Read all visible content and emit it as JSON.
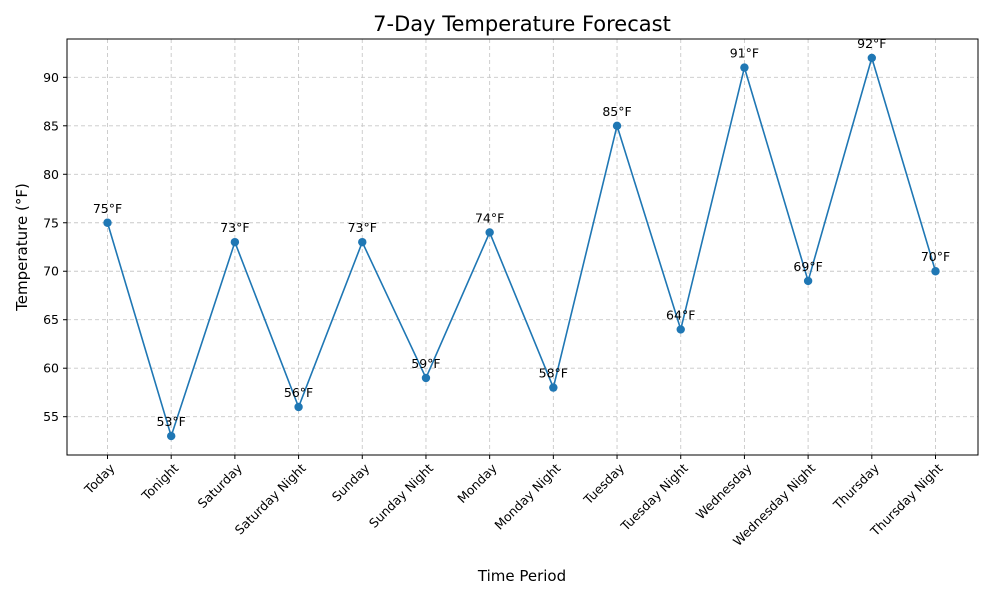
{
  "chart_data": {
    "type": "line",
    "title": "7-Day Temperature Forecast",
    "xlabel": "Time Period",
    "ylabel": "Temperature (°F)",
    "categories": [
      "Today",
      "Tonight",
      "Saturday",
      "Saturday Night",
      "Sunday",
      "Sunday Night",
      "Monday",
      "Monday Night",
      "Tuesday",
      "Tuesday Night",
      "Wednesday",
      "Wednesday Night",
      "Thursday",
      "Thursday Night"
    ],
    "values": [
      75,
      53,
      73,
      56,
      73,
      59,
      74,
      58,
      85,
      64,
      91,
      69,
      92,
      70
    ],
    "data_labels": [
      "75°F",
      "53°F",
      "73°F",
      "56°F",
      "73°F",
      "59°F",
      "74°F",
      "58°F",
      "85°F",
      "64°F",
      "91°F",
      "69°F",
      "92°F",
      "70°F"
    ],
    "yticks": [
      55,
      60,
      65,
      70,
      75,
      80,
      85,
      90
    ],
    "ylim": [
      51.05,
      93.95
    ],
    "grid": true,
    "line_color": "#1f77b4",
    "marker": "circle"
  }
}
